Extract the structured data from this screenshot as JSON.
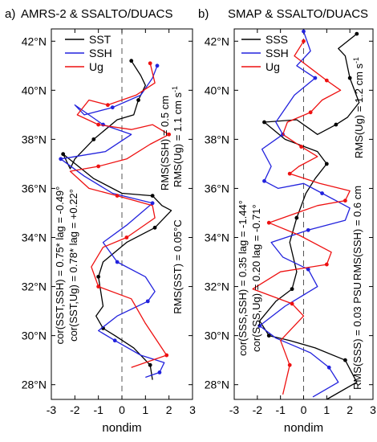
{
  "chart_data": [
    {
      "type": "line",
      "panel_label": "a)",
      "title": "AMRS-2 & SSALTO/DUACS",
      "xlabel": "nondim",
      "xlim": [
        -3,
        3
      ],
      "ylim": [
        27.4,
        42.5
      ],
      "x_ticks": [
        "-3",
        "-2",
        "-1",
        "0",
        "1",
        "2",
        "3"
      ],
      "y_ticks": [
        "28°N",
        "30°N",
        "32°N",
        "34°N",
        "36°N",
        "38°N",
        "40°N",
        "42°N"
      ],
      "colors": {
        "SST": "#000000",
        "SSH": "#2222dd",
        "Ug": "#ee1111"
      },
      "annotations": {
        "rms_ssh": "RMS(SSH) = 0.5 cm",
        "rms_ug": "RMS(Ug) = 1.1 cm s",
        "rms_ug_exp": "-1",
        "rms_sst": "RMS(SST) = 0.05°C",
        "cor_ssh": "cor(SST,SSH) = 0.75*  lag = -0.49°",
        "cor_ug": "cor(SST,Ug) = 0.78*  lag = +0.22°"
      },
      "series": [
        {
          "name": "SST",
          "x": [
            0.4,
            0.8,
            1.0,
            0.7,
            0.5,
            -0.2,
            -1.2,
            -2.0,
            -2.2,
            -2.5,
            -1.2,
            0.0,
            1.3,
            1.7,
            2.1,
            1.4,
            0.2,
            -0.8,
            -1.0,
            -0.8,
            -1.1,
            -0.8,
            -0.3,
            0.5,
            1.2,
            1.3
          ],
          "y": [
            41.2,
            40.6,
            40.2,
            39.6,
            39.0,
            38.8,
            38.0,
            37.2,
            36.8,
            37.4,
            36.4,
            35.8,
            35.7,
            35.3,
            35.1,
            34.4,
            33.8,
            33.0,
            32.4,
            31.2,
            30.8,
            30.3,
            30.0,
            29.5,
            28.8,
            28.2
          ]
        },
        {
          "name": "SSH",
          "x": [
            1.5,
            1.3,
            0.8,
            -0.4,
            -1.6,
            -2.0,
            -0.8,
            0.4,
            -0.7,
            -2.6,
            -1.6,
            -0.4,
            1.3,
            0.2,
            -0.8,
            -0.2,
            1.0,
            1.4,
            1.1,
            -0.2,
            -1.0,
            -0.3,
            0.8,
            1.8,
            1.6,
            1.0
          ],
          "y": [
            41.0,
            40.5,
            39.8,
            39.3,
            39.0,
            39.4,
            38.6,
            38.2,
            37.5,
            37.2,
            36.5,
            35.8,
            35.4,
            34.5,
            33.8,
            33.0,
            32.4,
            31.8,
            31.4,
            30.8,
            30.2,
            29.8,
            29.2,
            28.9,
            28.5,
            28.3
          ]
        },
        {
          "name": "Ug",
          "x": [
            1.2,
            1.4,
            0.6,
            -0.6,
            -1.4,
            -1.9,
            -1.0,
            0.4,
            1.3,
            2.0,
            1.2,
            0.2,
            -1.0,
            -2.2,
            -1.4,
            -0.2,
            1.3,
            1.4,
            0.2,
            -0.8,
            -1.3,
            -1.0,
            0.4,
            1.0,
            1.9,
            0.4
          ],
          "y": [
            41.1,
            40.3,
            39.8,
            39.4,
            39.6,
            39.0,
            38.6,
            38.4,
            38.6,
            38.2,
            37.8,
            37.2,
            36.9,
            36.7,
            36.0,
            35.7,
            35.3,
            34.8,
            34.0,
            33.6,
            32.8,
            32.0,
            31.5,
            30.5,
            29.2,
            28.7
          ]
        }
      ]
    },
    {
      "type": "line",
      "panel_label": "b)",
      "title": "SMAP & SSALTO/DUACS",
      "xlabel": "nondim",
      "xlim": [
        -3,
        3
      ],
      "ylim": [
        27.4,
        42.5
      ],
      "x_ticks": [
        "-3",
        "-2",
        "-1",
        "0",
        "1",
        "2",
        "3"
      ],
      "y_ticks": [
        "28°N",
        "30°N",
        "32°N",
        "34°N",
        "36°N",
        "38°N",
        "40°N",
        "42°N"
      ],
      "colors": {
        "SSS": "#000000",
        "SSH": "#2222dd",
        "Ug": "#ee1111"
      },
      "annotations": {
        "rms_ug": "RMS(Ug) = 1.2 cm s",
        "rms_ug_exp": "-1",
        "rms_ssh": "RMS(SSH) = 0.6 cm",
        "rms_sss": "RMS(SSS) = 0.03 PSU",
        "cor_ssh": "cor(SSS,SSH) = 0.35  lag = -1.44°",
        "cor_ug": "cor(SSS,Ug) = 0.20  lag = -0.71°"
      },
      "series": [
        {
          "name": "SSS",
          "x": [
            2.3,
            1.5,
            1.8,
            2.0,
            2.4,
            1.9,
            1.4,
            0.6,
            -0.3,
            -1.7,
            -0.8,
            0.6,
            1.0,
            0.5,
            0.1,
            -0.3,
            -0.6,
            -0.3,
            -0.5,
            -1.2,
            -1.9,
            -1.5,
            -0.6,
            0.5,
            1.8,
            2.3,
            1.0
          ],
          "y": [
            42.3,
            41.7,
            41.4,
            40.5,
            39.5,
            38.9,
            38.6,
            38.2,
            38.8,
            38.7,
            38.0,
            37.5,
            37.0,
            36.4,
            35.8,
            34.8,
            33.8,
            32.6,
            31.9,
            31.4,
            30.6,
            30.0,
            29.8,
            29.5,
            29.0,
            28.1,
            27.4
          ]
        },
        {
          "name": "SSH",
          "x": [
            0.0,
            0.3,
            -0.3,
            0.5,
            -0.4,
            -1.2,
            -0.9,
            -1.8,
            -1.4,
            -1.7,
            -1.1,
            0.0,
            0.8,
            2.0,
            1.8,
            0.2,
            -1.4,
            -0.9,
            0.2,
            0.6,
            -0.8,
            -1.9,
            -1.2,
            0.3,
            1.1,
            1.5,
            0.4
          ],
          "y": [
            42.4,
            41.6,
            41.0,
            40.5,
            39.8,
            38.7,
            38.2,
            37.6,
            36.9,
            36.3,
            36.0,
            36.2,
            35.8,
            35.2,
            34.7,
            34.3,
            33.8,
            33.2,
            32.7,
            32.0,
            31.2,
            30.4,
            29.9,
            29.3,
            28.7,
            28.1,
            27.5
          ]
        },
        {
          "name": "Ug",
          "x": [
            0.0,
            -0.4,
            0.3,
            1.0,
            1.6,
            0.8,
            0.3,
            -0.7,
            -0.9,
            -0.1,
            0.6,
            -0.2,
            -0.6,
            0.7,
            2.0,
            1.8,
            0.6,
            -0.3,
            -1.5,
            -0.2,
            1.2,
            1.0,
            -1.0,
            -2.2,
            -0.5,
            0.0,
            -1.0,
            -0.6,
            -0.9
          ],
          "y": [
            42.0,
            41.4,
            40.9,
            40.4,
            40.0,
            39.6,
            39.1,
            38.7,
            38.2,
            37.7,
            37.3,
            36.9,
            36.6,
            36.2,
            35.9,
            35.5,
            35.3,
            35.0,
            34.6,
            34.1,
            33.4,
            32.9,
            32.6,
            31.9,
            31.3,
            30.8,
            29.8,
            28.8,
            27.6
          ]
        }
      ]
    }
  ]
}
